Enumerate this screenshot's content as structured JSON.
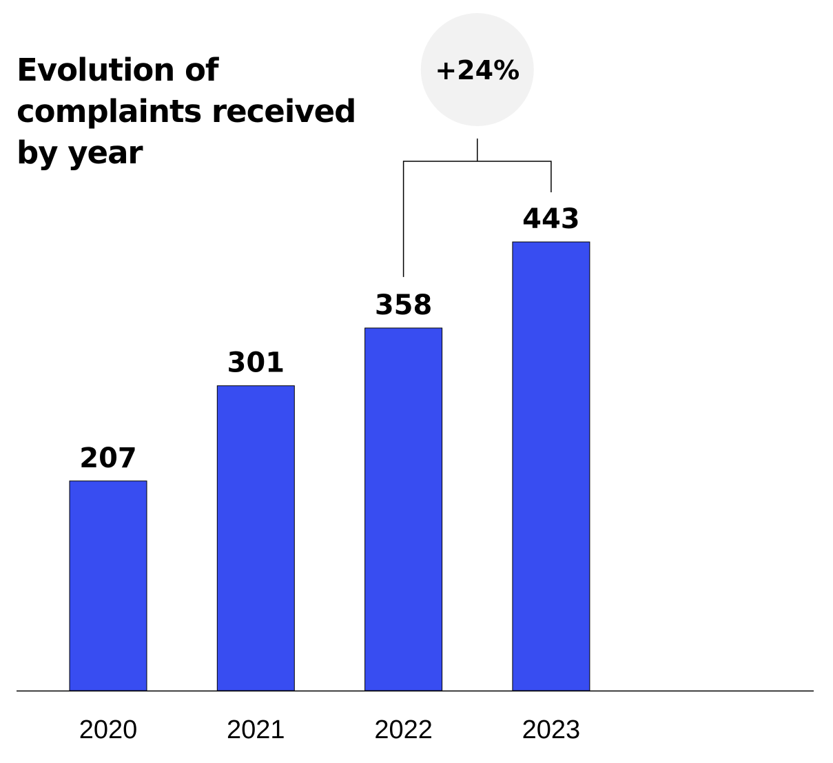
{
  "chart_data": {
    "type": "bar",
    "title": "Evolution of complaints received by year",
    "categories": [
      "2020",
      "2021",
      "2022",
      "2023"
    ],
    "values": [
      207,
      301,
      358,
      443
    ],
    "data_labels": [
      "207",
      "301",
      "358",
      "443"
    ],
    "ylim": [
      0,
      443
    ],
    "grid": false,
    "legend": "none",
    "annotation": {
      "text": "+24%",
      "from_category": "2022",
      "to_category": "2023"
    },
    "colors": {
      "bar": "#384df1",
      "bar_outline": "#000000",
      "badge_fill": "#f2f2f2",
      "axis": "#000000",
      "bracket": "#000000"
    }
  }
}
